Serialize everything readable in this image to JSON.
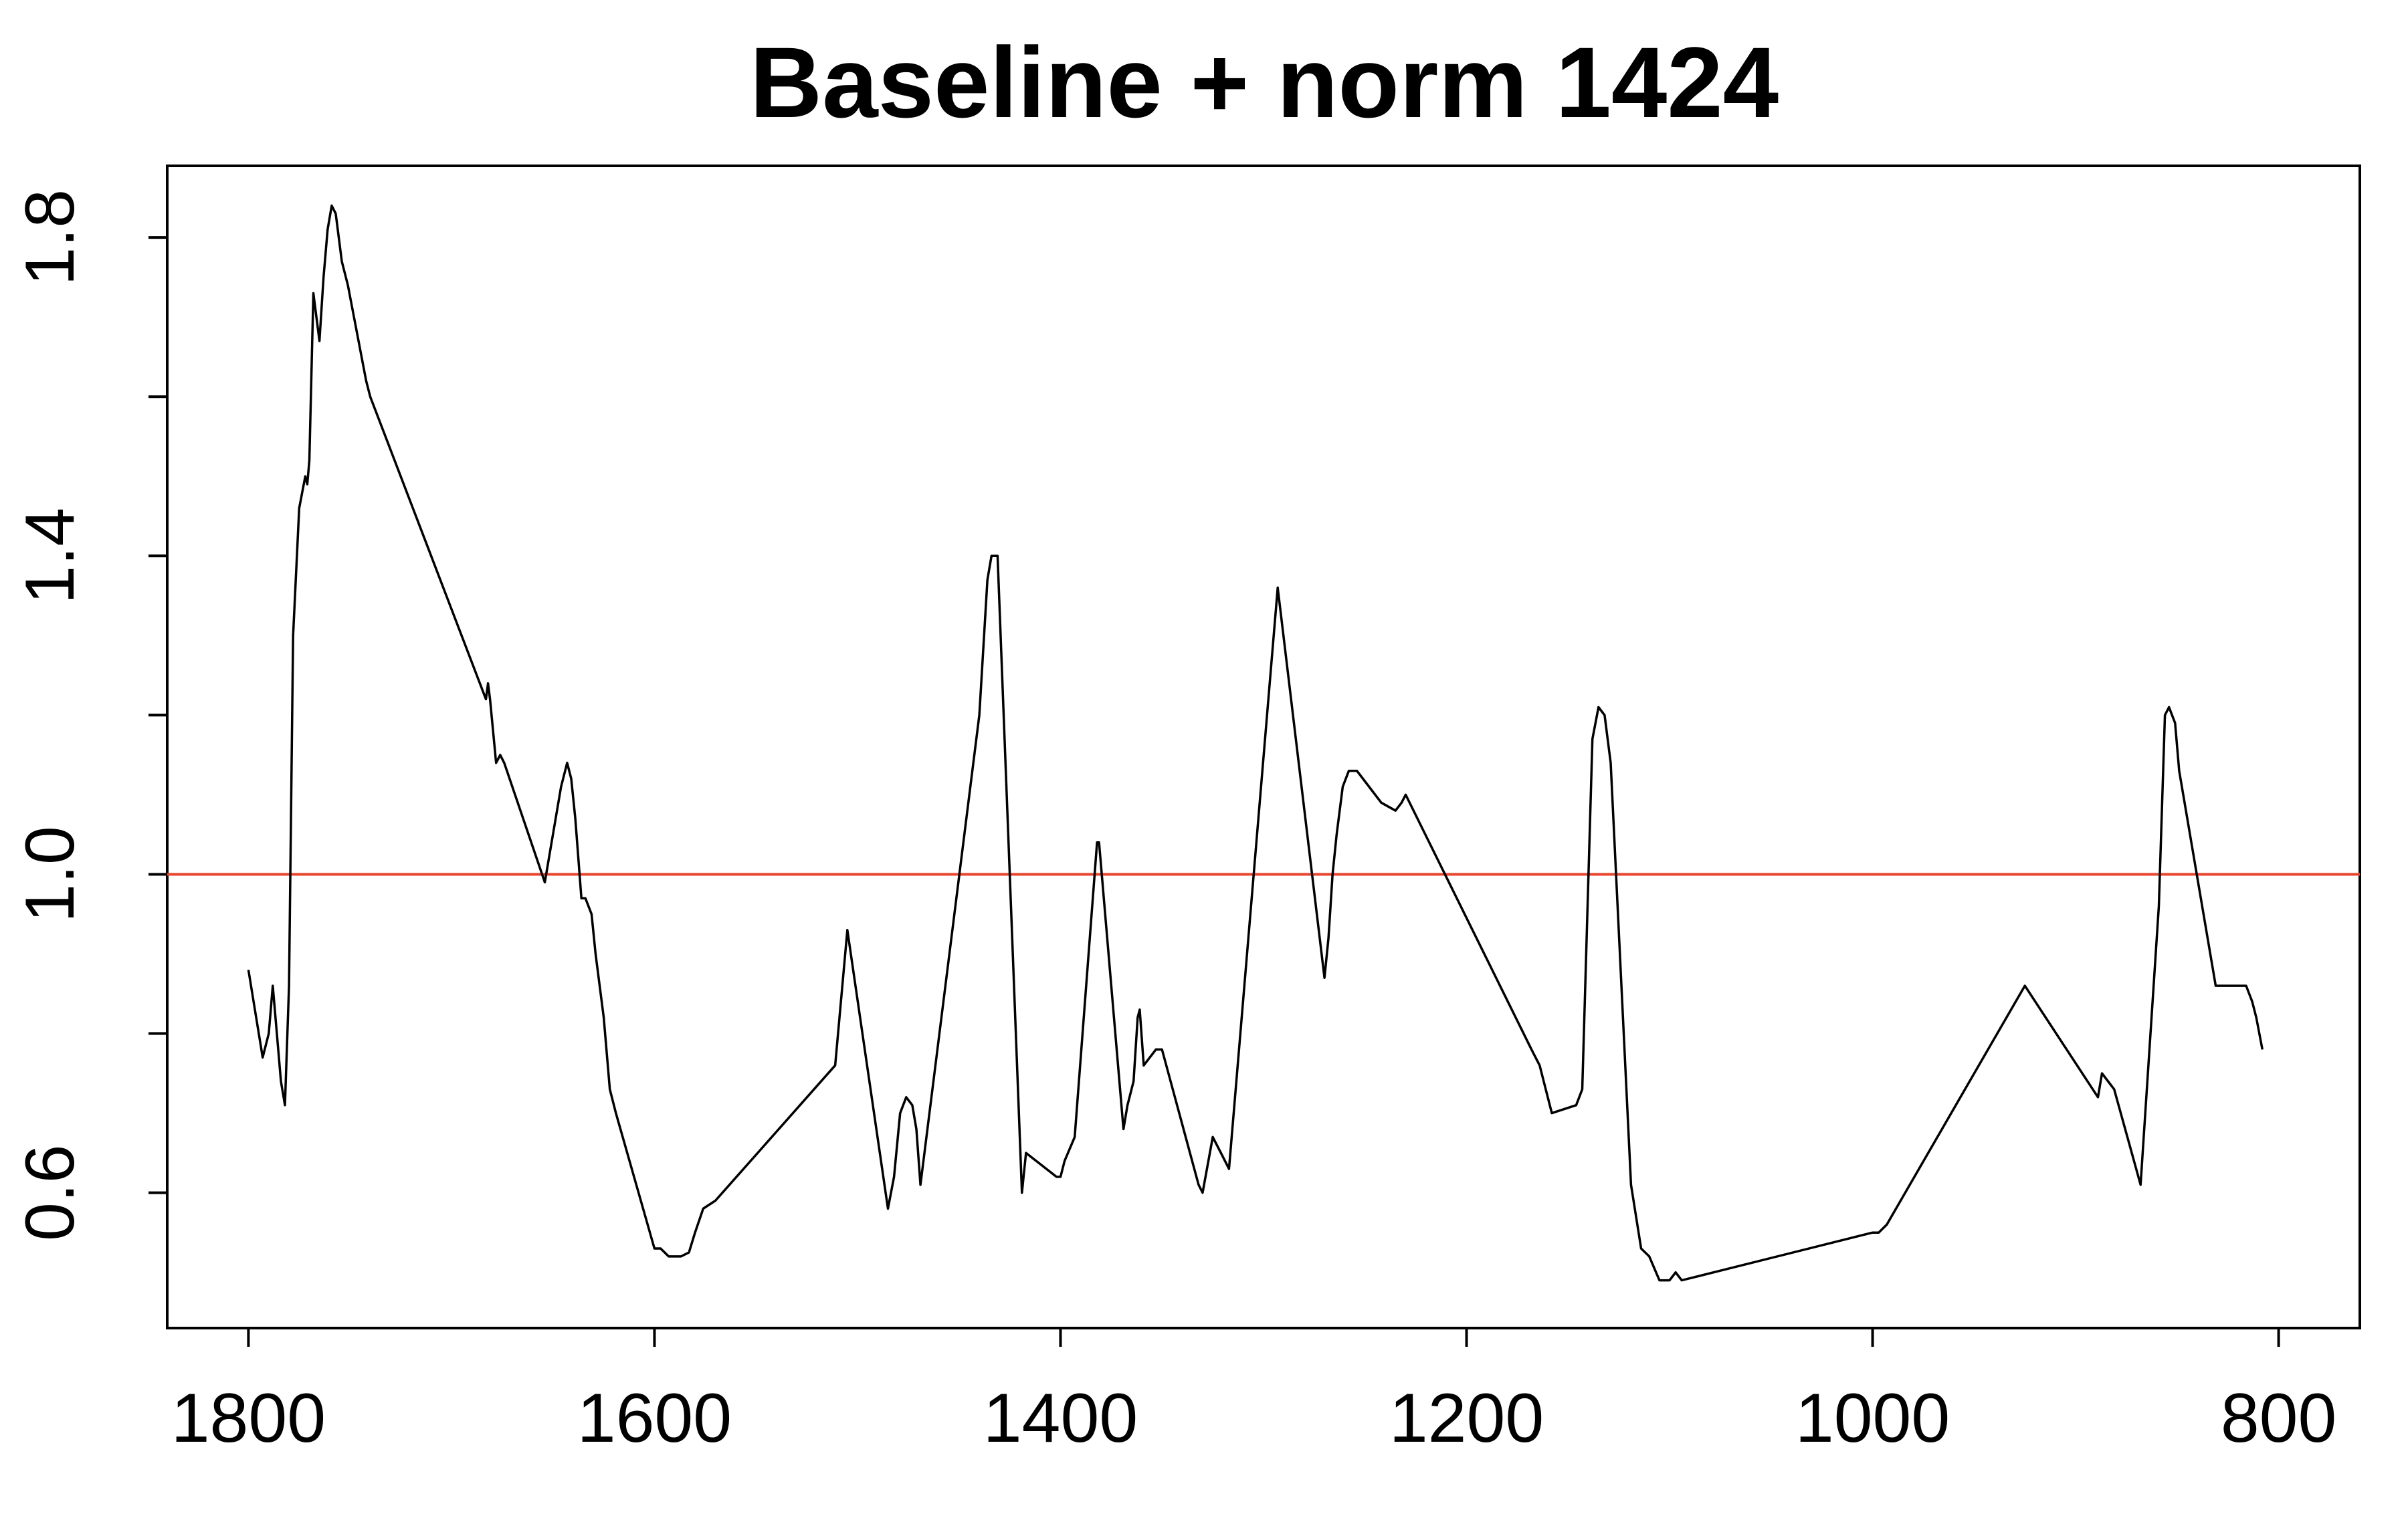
{
  "chart_data": {
    "type": "line",
    "title": "Baseline + norm 1424",
    "xlabel": "",
    "ylabel": "",
    "x_reversed": true,
    "xlim": [
      1840,
      760
    ],
    "ylim": [
      0.43,
      1.89
    ],
    "x_ticks": [
      1800,
      1600,
      1400,
      1200,
      1000,
      800
    ],
    "x_tick_labels": [
      "1800",
      "1600",
      "1400",
      "1200",
      "1000",
      "800"
    ],
    "y_ticks": [
      0.6,
      0.8,
      1.0,
      1.2,
      1.4,
      1.6,
      1.8
    ],
    "y_tick_labels": [
      "0.6",
      "",
      "1.0",
      "",
      "1.4",
      "",
      "1.8"
    ],
    "grid": false,
    "legend": "none",
    "colors": {
      "series": "#000000",
      "reference_line": "#e8452c"
    },
    "reference_line": {
      "y": 1.0
    },
    "series": [
      {
        "x": [
          1800,
          1793,
          1790,
          1788,
          1786,
          1784,
          1782,
          1780,
          1778,
          1775,
          1772,
          1771,
          1770,
          1768,
          1765,
          1763,
          1761,
          1759,
          1757,
          1754,
          1751,
          1748,
          1745,
          1742,
          1740,
          1683,
          1682,
          1681,
          1678,
          1676,
          1674,
          1654,
          1646,
          1643,
          1641,
          1639,
          1636,
          1634,
          1631,
          1629,
          1627,
          1625,
          1622,
          1619,
          1600,
          1597,
          1593,
          1587,
          1583,
          1580,
          1576,
          1570,
          1511,
          1505,
          1485,
          1482,
          1479,
          1476,
          1473,
          1471,
          1469,
          1440,
          1436,
          1434,
          1431,
          1419,
          1417,
          1402,
          1400,
          1398,
          1393,
          1382,
          1381,
          1369,
          1367,
          1364,
          1362,
          1361,
          1359,
          1356,
          1353,
          1350,
          1332,
          1330,
          1325,
          1321,
          1317,
          1293,
          1270,
          1268,
          1266,
          1264,
          1261,
          1258,
          1254,
          1248,
          1242,
          1235,
          1232,
          1230,
          1168,
          1166,
          1164,
          1158,
          1146,
          1143,
          1138,
          1135,
          1132,
          1129,
          1119,
          1114,
          1110,
          1105,
          1100,
          1097,
          1094,
          1000,
          997,
          993,
          925,
          889,
          887,
          884,
          881,
          868,
          859,
          856,
          854,
          851,
          849,
          831,
          821,
          818,
          816,
          813,
          811,
          808
        ],
        "y": [
          0.88,
          0.77,
          0.8,
          0.86,
          0.8,
          0.74,
          0.71,
          0.86,
          1.3,
          1.46,
          1.5,
          1.49,
          1.52,
          1.73,
          1.67,
          1.75,
          1.81,
          1.84,
          1.83,
          1.77,
          1.74,
          1.7,
          1.66,
          1.62,
          1.6,
          1.22,
          1.24,
          1.22,
          1.14,
          1.15,
          1.14,
          0.99,
          1.11,
          1.14,
          1.12,
          1.07,
          0.97,
          0.97,
          0.95,
          0.9,
          0.86,
          0.82,
          0.73,
          0.7,
          0.53,
          0.53,
          0.52,
          0.52,
          0.525,
          0.55,
          0.58,
          0.59,
          0.76,
          0.93,
          0.58,
          0.62,
          0.7,
          0.72,
          0.71,
          0.68,
          0.61,
          1.2,
          1.37,
          1.4,
          1.4,
          0.6,
          0.65,
          0.62,
          0.62,
          0.64,
          0.67,
          1.04,
          1.04,
          0.68,
          0.71,
          0.74,
          0.82,
          0.83,
          0.76,
          0.77,
          0.78,
          0.78,
          0.61,
          0.6,
          0.67,
          0.65,
          0.63,
          1.36,
          0.87,
          0.92,
          1.0,
          1.05,
          1.11,
          1.13,
          1.13,
          1.11,
          1.09,
          1.08,
          1.09,
          1.1,
          0.78,
          0.77,
          0.76,
          0.7,
          0.71,
          0.73,
          1.17,
          1.21,
          1.2,
          1.14,
          0.61,
          0.53,
          0.52,
          0.49,
          0.49,
          0.5,
          0.49,
          0.55,
          0.55,
          0.56,
          0.86,
          0.72,
          0.75,
          0.74,
          0.73,
          0.61,
          0.96,
          1.2,
          1.21,
          1.19,
          1.13,
          0.86,
          0.86,
          0.86,
          0.86,
          0.84,
          0.82,
          0.78
        ]
      }
    ]
  }
}
